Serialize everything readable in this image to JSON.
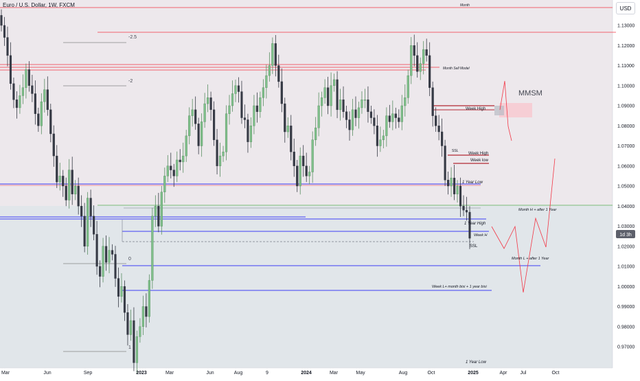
{
  "header": {
    "symbol_title": "Euro / U.S. Dollar, 1W, FXCM",
    "currency_button": "USD"
  },
  "countdown_badge": "1d 3h",
  "chart_data": {
    "type": "candlestick",
    "title": "Euro / U.S. Dollar, 1W, FXCM",
    "y_range": [
      0.9632,
      1.1395
    ],
    "x_ticks": [
      "Mar",
      "Jun",
      "Sep",
      "2023",
      "Mar",
      "Jun",
      "Aug",
      "9",
      "2024",
      "Mar",
      "May",
      "Aug",
      "Oct",
      "2025",
      "Apr",
      "Jul",
      "Oct"
    ],
    "y_ticks": [
      "1.13000",
      "1.12000",
      "1.11000",
      "1.10000",
      "1.09000",
      "1.08000",
      "1.07000",
      "1.06000",
      "1.05000",
      "1.04000",
      "1.03000",
      "1.02000",
      "1.01000",
      "1.00000",
      "0.99000",
      "0.98000",
      "0.97000"
    ],
    "y_tick_values": [
      1.13,
      1.12,
      1.11,
      1.1,
      1.09,
      1.08,
      1.07,
      1.06,
      1.05,
      1.04,
      1.03,
      1.02,
      1.01,
      1.0,
      0.99,
      0.98,
      0.97
    ],
    "closes": [
      1.13,
      1.124,
      1.115,
      1.101,
      1.093,
      1.089,
      1.095,
      1.099,
      1.108,
      1.1,
      1.096,
      1.086,
      1.08,
      1.092,
      1.098,
      1.088,
      1.076,
      1.065,
      1.052,
      1.055,
      1.05,
      1.043,
      1.058,
      1.046,
      1.05,
      1.04,
      1.035,
      1.02,
      1.044,
      1.035,
      1.026,
      1.01,
      1.005,
      1.02,
      1.012,
      1.018,
      1.016,
      1.004,
      0.995,
      1.0,
      0.987,
      0.976,
      0.983,
      0.962,
      0.975,
      0.98,
      0.99,
      0.985,
      1.003,
      1.035,
      1.04,
      1.03,
      1.047,
      1.055,
      1.06,
      1.058,
      1.055,
      1.063,
      1.062,
      1.065,
      1.075,
      1.085,
      1.088,
      1.081,
      1.07,
      1.082,
      1.091,
      1.094,
      1.088,
      1.073,
      1.06,
      1.065,
      1.067,
      1.086,
      1.09,
      1.096,
      1.1,
      1.097,
      1.084,
      1.083,
      1.072,
      1.08,
      1.09,
      1.087,
      1.094,
      1.099,
      1.105,
      1.11,
      1.121,
      1.11,
      1.102,
      1.091,
      1.077,
      1.08,
      1.067,
      1.06,
      1.05,
      1.065,
      1.06,
      1.055,
      1.057,
      1.073,
      1.079,
      1.09,
      1.094,
      1.099,
      1.09,
      1.1,
      1.103,
      1.088,
      1.093,
      1.087,
      1.083,
      1.078,
      1.088,
      1.084,
      1.089,
      1.093,
      1.093,
      1.087,
      1.084,
      1.08,
      1.07,
      1.073,
      1.075,
      1.085,
      1.082,
      1.086,
      1.084,
      1.082,
      1.09,
      1.094,
      1.105,
      1.12,
      1.115,
      1.107,
      1.111,
      1.118,
      1.115,
      1.099,
      1.085,
      1.08,
      1.077,
      1.07,
      1.053,
      1.05,
      1.054,
      1.046,
      1.05,
      1.04,
      1.038,
      1.037,
      1.024
    ],
    "horizontal_levels": [
      {
        "label": "Month",
        "price": 1.138,
        "color": "#f23645"
      },
      {
        "label": "",
        "price": 1.126,
        "color": "#f23645"
      },
      {
        "label": "Month Sell Model",
        "price": 1.11,
        "color": "#f23645"
      },
      {
        "label": "Week High",
        "price": 1.087,
        "color": "#b22833"
      },
      {
        "label": "Week High",
        "price": 1.068,
        "color": "#b22833"
      },
      {
        "label": "Week low",
        "price": 1.061,
        "color": "#b22833"
      },
      {
        "label": "1 Year Low",
        "price": 1.049,
        "color": "#3d3df5"
      },
      {
        "label": "Month H + after 1 Year",
        "price": 1.04,
        "color": "#4caf50"
      },
      {
        "label": "1 Year High",
        "price": 1.034,
        "color": "#3d3df5"
      },
      {
        "label": "Week H",
        "price": 1.027,
        "color": "#3d3df5"
      },
      {
        "label": "SSL",
        "price": 1.022,
        "color": "#555555"
      },
      {
        "label": "Month L + after 1 Year",
        "price": 1.009,
        "color": "#3d3df5"
      },
      {
        "label": "Week L+ month bisi + 1 year bisi",
        "price": 0.9975,
        "color": "#3d3df5"
      }
    ],
    "fib_labels": [
      "-2.5",
      "-2",
      "0",
      "1"
    ],
    "other_labels": [
      "MMSM",
      "SSL",
      "1 Year Low"
    ],
    "colors": {
      "up": "#7fbf8a",
      "down": "#363a45",
      "bg_top": "#ede8ec",
      "bg_bottom": "#e1e6ea",
      "projection": "#f23645"
    }
  }
}
